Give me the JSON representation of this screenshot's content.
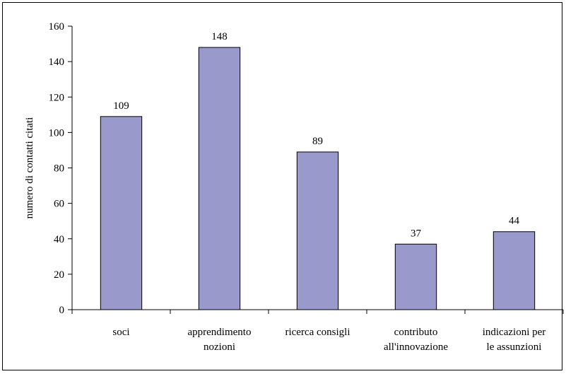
{
  "chart_data": {
    "type": "bar",
    "title": "",
    "xlabel": "",
    "ylabel": "numero di contatti citati",
    "categories": [
      [
        "soci"
      ],
      [
        "apprendimento",
        "nozioni"
      ],
      [
        "ricerca consigli"
      ],
      [
        "contributo",
        "all'innovazione"
      ],
      [
        "indicazioni per",
        "le assunzioni"
      ]
    ],
    "values": [
      109,
      148,
      89,
      37,
      44
    ],
    "data_labels": [
      "109",
      "148",
      "89",
      "37",
      "44"
    ],
    "ylim": [
      0,
      160
    ],
    "yticks": [
      0,
      20,
      40,
      60,
      80,
      100,
      120,
      140,
      160
    ],
    "grid": false,
    "legend": "none",
    "colors": {
      "bar_fill": "#9999cc",
      "bar_stroke": "#000000",
      "axis": "#000000",
      "background": "#ffffff"
    }
  }
}
